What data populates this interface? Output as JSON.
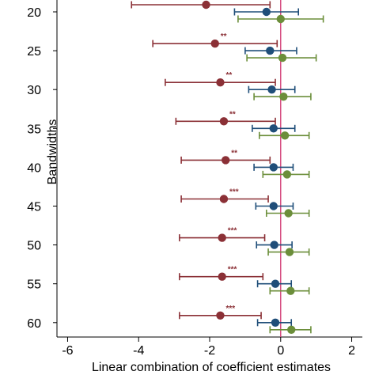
{
  "chart_data": {
    "type": "scatter",
    "title": "",
    "xlabel": "Linear combination of coefficient estimates",
    "ylabel": "Bandwidths",
    "xlim": [
      -6.3,
      2.3
    ],
    "x_ticks": [
      -6,
      -4,
      -2,
      0,
      2
    ],
    "x_tick_labels": [
      "-6",
      "-4",
      "-2",
      "0",
      "2"
    ],
    "categories": [
      "20",
      "25",
      "30",
      "35",
      "40",
      "45",
      "50",
      "55",
      "60"
    ],
    "reference_line_x": 0,
    "series": [
      {
        "color": "#8b3036",
        "values": [
          -2.1,
          -1.85,
          -1.7,
          -1.6,
          -1.55,
          -1.6,
          -1.65,
          -1.65,
          -1.7
        ],
        "ci_low": [
          -4.2,
          -3.6,
          -3.25,
          -2.95,
          -2.8,
          -2.8,
          -2.85,
          -2.85,
          -2.85
        ],
        "ci_high": [
          -0.3,
          -0.1,
          -0.15,
          -0.15,
          -0.3,
          -0.35,
          -0.45,
          -0.5,
          -0.55
        ],
        "significance": [
          "**",
          "**",
          "**",
          "**",
          "**",
          "***",
          "***",
          "***",
          "***"
        ]
      },
      {
        "color": "#1f4e79",
        "values": [
          -0.4,
          -0.3,
          -0.25,
          -0.2,
          -0.2,
          -0.2,
          -0.18,
          -0.15,
          -0.15
        ],
        "ci_low": [
          -1.3,
          -1.0,
          -0.9,
          -0.8,
          -0.75,
          -0.7,
          -0.68,
          -0.65,
          -0.65
        ],
        "ci_high": [
          0.5,
          0.45,
          0.4,
          0.4,
          0.35,
          0.35,
          0.32,
          0.3,
          0.3
        ]
      },
      {
        "color": "#6b8e3a",
        "values": [
          0,
          0.05,
          0.08,
          0.12,
          0.18,
          0.22,
          0.25,
          0.28,
          0.3
        ],
        "ci_low": [
          -1.2,
          -0.95,
          -0.75,
          -0.6,
          -0.5,
          -0.4,
          -0.35,
          -0.3,
          -0.3
        ],
        "ci_high": [
          1.2,
          1.0,
          0.85,
          0.8,
          0.8,
          0.8,
          0.8,
          0.8,
          0.85
        ]
      }
    ],
    "grid": false,
    "legend": "none"
  }
}
